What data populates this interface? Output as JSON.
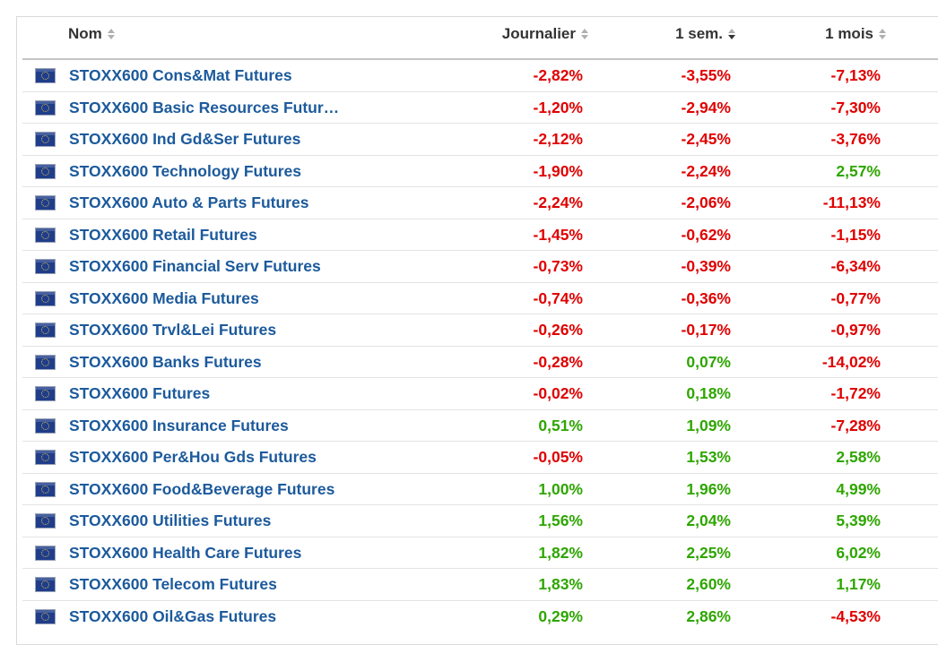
{
  "table": {
    "columns": {
      "name": "Nom",
      "day": "Journalier",
      "week": "1 sem.",
      "month": "1 mois"
    },
    "rows": [
      {
        "name": "STOXX600 Cons&Mat Futures",
        "day": "-2,82%",
        "week": "-3,55%",
        "month": "-7,13%"
      },
      {
        "name": "STOXX600 Basic Resources Futur…",
        "day": "-1,20%",
        "week": "-2,94%",
        "month": "-7,30%"
      },
      {
        "name": "STOXX600 Ind Gd&Ser Futures",
        "day": "-2,12%",
        "week": "-2,45%",
        "month": "-3,76%"
      },
      {
        "name": "STOXX600 Technology Futures",
        "day": "-1,90%",
        "week": "-2,24%",
        "month": "2,57%"
      },
      {
        "name": "STOXX600 Auto & Parts Futures",
        "day": "-2,24%",
        "week": "-2,06%",
        "month": "-11,13%"
      },
      {
        "name": "STOXX600 Retail Futures",
        "day": "-1,45%",
        "week": "-0,62%",
        "month": "-1,15%"
      },
      {
        "name": "STOXX600 Financial Serv Futures",
        "day": "-0,73%",
        "week": "-0,39%",
        "month": "-6,34%"
      },
      {
        "name": "STOXX600 Media Futures",
        "day": "-0,74%",
        "week": "-0,36%",
        "month": "-0,77%"
      },
      {
        "name": "STOXX600 Trvl&Lei Futures",
        "day": "-0,26%",
        "week": "-0,17%",
        "month": "-0,97%"
      },
      {
        "name": "STOXX600 Banks Futures",
        "day": "-0,28%",
        "week": "0,07%",
        "month": "-14,02%"
      },
      {
        "name": "STOXX600 Futures",
        "day": "-0,02%",
        "week": "0,18%",
        "month": "-1,72%"
      },
      {
        "name": "STOXX600 Insurance Futures",
        "day": "0,51%",
        "week": "1,09%",
        "month": "-7,28%"
      },
      {
        "name": "STOXX600 Per&Hou Gds Futures",
        "day": "-0,05%",
        "week": "1,53%",
        "month": "2,58%"
      },
      {
        "name": "STOXX600 Food&Beverage Futures",
        "day": "1,00%",
        "week": "1,96%",
        "month": "4,99%"
      },
      {
        "name": "STOXX600 Utilities Futures",
        "day": "1,56%",
        "week": "2,04%",
        "month": "5,39%"
      },
      {
        "name": "STOXX600 Health Care Futures",
        "day": "1,82%",
        "week": "2,25%",
        "month": "6,02%"
      },
      {
        "name": "STOXX600 Telecom Futures",
        "day": "1,83%",
        "week": "2,60%",
        "month": "1,17%"
      },
      {
        "name": "STOXX600 Oil&Gas Futures",
        "day": "0,29%",
        "week": "2,86%",
        "month": "-4,53%"
      }
    ]
  },
  "icons": {
    "flag": "eu-flag-icon",
    "sort": "sort-arrows-icon"
  },
  "colors": {
    "negative": "#e00000",
    "positive": "#2ea600",
    "link": "#1c5a9c",
    "header_text": "#333333"
  }
}
